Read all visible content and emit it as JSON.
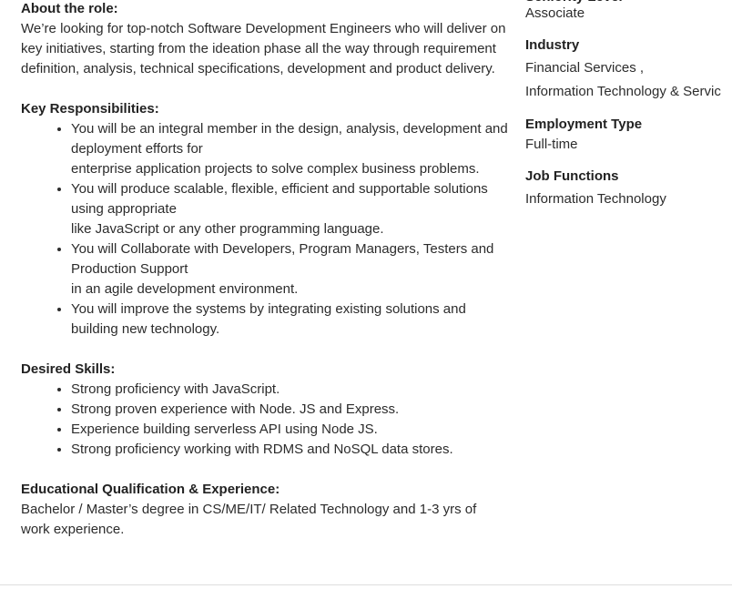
{
  "about": {
    "heading": "About the role:",
    "text": "We’re looking for top-notch Software Development Engineers who will deliver on key initiatives, starting from the ideation phase all the way through requirement definition, analysis, technical specifications, development and product delivery."
  },
  "responsibilities": {
    "heading": "Key Responsibilities:",
    "items": [
      [
        "You will be an integral member in the design, analysis, development and deployment efforts for",
        "enterprise application projects to solve complex business problems."
      ],
      [
        "You will produce scalable, flexible, efficient and supportable solutions using appropriate",
        "like JavaScript or any other programming language."
      ],
      [
        "You will Collaborate with Developers, Program Managers, Testers and Production Support",
        "in an agile development environment."
      ],
      [
        "You will improve the systems by integrating existing solutions and building new technology."
      ]
    ]
  },
  "skills": {
    "heading": "Desired Skills:",
    "items": [
      [
        "Strong proficiency with JavaScript."
      ],
      [
        "Strong proven experience with Node. JS and Express."
      ],
      [
        "Experience building serverless API using Node JS."
      ],
      [
        "Strong proficiency working with RDMS and NoSQL data stores."
      ]
    ]
  },
  "education": {
    "heading": "Educational Qualification & Experience:",
    "text": "Bachelor / Master’s degree in CS/ME/IT/ Related Technology and 1-3 yrs of work experience."
  },
  "sidebar": {
    "seniority": {
      "label": "Seniority Level",
      "value": "Associate"
    },
    "industry": {
      "label": "Industry",
      "values": [
        "Financial Services ,",
        "Information Technology & Servic"
      ]
    },
    "employment_type": {
      "label": "Employment Type",
      "value": "Full-time"
    },
    "job_functions": {
      "label": "Job Functions",
      "value": "Information Technology"
    }
  }
}
